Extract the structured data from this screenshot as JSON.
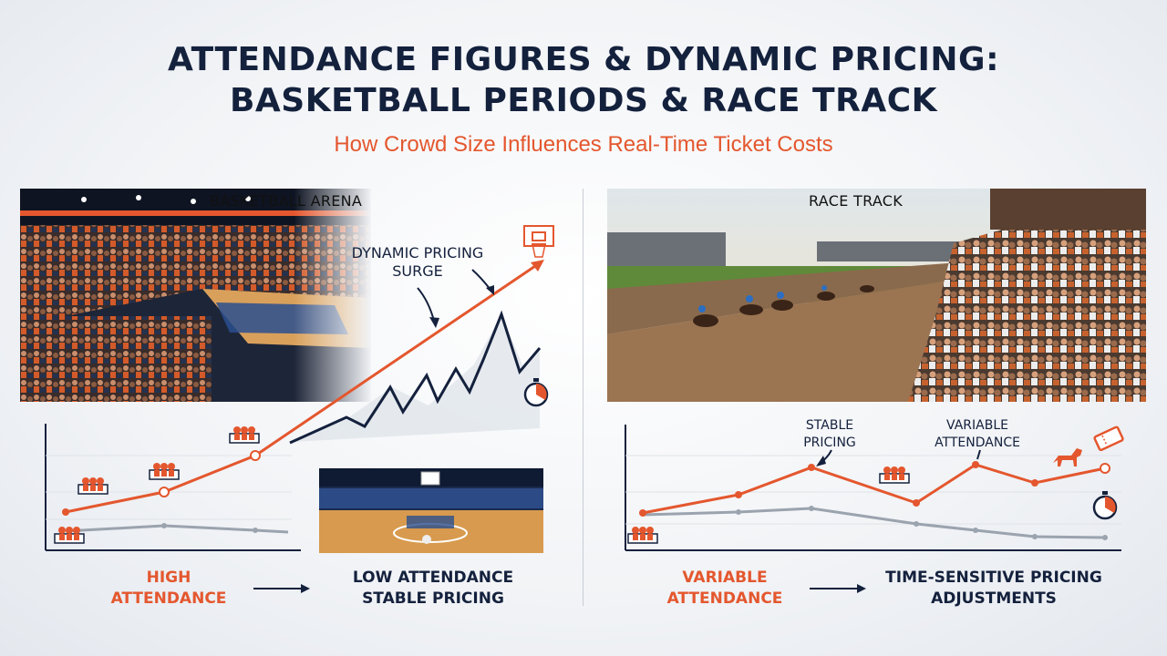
{
  "header": {
    "title_line1": "ATTENDANCE FIGURES & DYNAMIC PRICING:",
    "title_line2": "BASKETBALL PERIODS & RACE TRACK",
    "subtitle": "How Crowd Size Influences Real-Time Ticket Costs"
  },
  "left_panel": {
    "photo_label": "BASKETBALL ARENA",
    "surge_line1": "DYNAMIC PRICING",
    "surge_line2": "SURGE",
    "bottom_left_line1": "HIGH",
    "bottom_left_line2": "ATTENDANCE",
    "bottom_right_line1": "LOW ATTENDANCE",
    "bottom_right_line2": "STABLE PRICING"
  },
  "right_panel": {
    "photo_label": "RACE TRACK",
    "stable_line1": "STABLE",
    "stable_line2": "PRICING",
    "variable_line1": "VARIABLE",
    "variable_line2": "ATTENDANCE",
    "bottom_left_line1": "VARIABLE",
    "bottom_left_line2": "ATTENDANCE",
    "bottom_right_line1": "TIME-SENSITIVE PRICING",
    "bottom_right_line2": "ADJUSTMENTS"
  },
  "colors": {
    "navy": "#14213d",
    "accent_orange": "#e4572e",
    "gray_line": "#9aa3ae"
  },
  "icons": [
    "basketball-hoop-icon",
    "stopwatch-icon",
    "crowd-icon",
    "horse-icon",
    "ticket-icon",
    "arrow-right-icon"
  ]
}
